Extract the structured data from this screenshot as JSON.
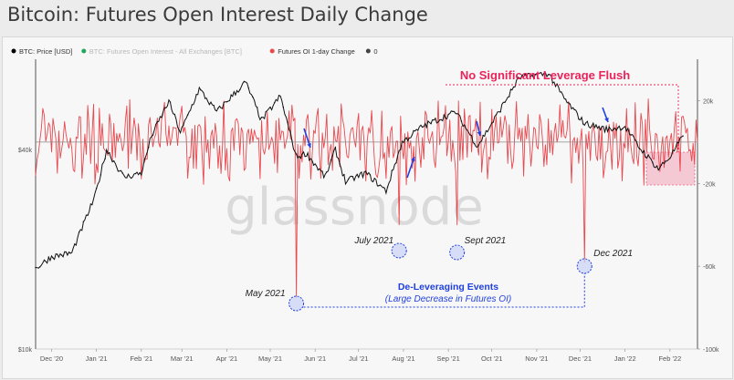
{
  "title": "Bitcoin: Futures Open Interest Daily Change",
  "watermark": "glassnode",
  "legend": [
    {
      "label": "BTC: Price [USD]",
      "color": "#000000"
    },
    {
      "label": "BTC: Futures Open Interest - All Exchanges [BTC]",
      "color": "#26a65b",
      "muted": true
    },
    {
      "label": "Futures OI 1-day Change",
      "color": "#e8484e"
    },
    {
      "label": "0",
      "color": "#444444"
    }
  ],
  "colors": {
    "price": "#111111",
    "oi_change": "#e8484e",
    "annotation_red": "#e8245a",
    "annotation_blue": "#1f3fe0",
    "zero_line": "#8a8a8a"
  },
  "annotations": {
    "no_flush": "No Significant Leverage Flush",
    "delev_title": "De-Leveraging Events",
    "delev_sub": "(Large Decrease in Futures OI)",
    "may": "May 2021",
    "july": "July 2021",
    "sept": "Sept 2021",
    "dec": "Dec 2021"
  },
  "chart_data": {
    "type": "line",
    "x_ticks": [
      "Dec '20",
      "Jan '21",
      "Feb '21",
      "Mar '21",
      "Apr '21",
      "May '21",
      "Jun '21",
      "Jul '21",
      "Aug '21",
      "Sep '21",
      "Oct '21",
      "Nov '21",
      "Dec '21",
      "Jan '22",
      "Feb '22"
    ],
    "y_left_ticks": [
      "$40k",
      "$10k"
    ],
    "y_right_ticks": [
      "20k",
      "-20k",
      "-60k",
      "-100k"
    ],
    "y_left": {
      "scale": "log",
      "range": [
        10000,
        75000
      ]
    },
    "y_right": {
      "range": [
        -100000,
        40000
      ]
    },
    "series": [
      {
        "name": "BTC: Price [USD]",
        "axis": "left",
        "points": [
          [
            "2020-11-20",
            17500
          ],
          [
            "2020-12-01",
            19000
          ],
          [
            "2020-12-15",
            19500
          ],
          [
            "2020-12-31",
            28900
          ],
          [
            "2021-01-08",
            40000
          ],
          [
            "2021-01-20",
            33000
          ],
          [
            "2021-02-01",
            34000
          ],
          [
            "2021-02-08",
            44000
          ],
          [
            "2021-02-20",
            56000
          ],
          [
            "2021-02-28",
            45000
          ],
          [
            "2021-03-13",
            61000
          ],
          [
            "2021-03-25",
            52000
          ],
          [
            "2021-04-14",
            64000
          ],
          [
            "2021-04-25",
            49000
          ],
          [
            "2021-05-08",
            58000
          ],
          [
            "2021-05-19",
            38000
          ],
          [
            "2021-05-26",
            39000
          ],
          [
            "2021-06-08",
            33000
          ],
          [
            "2021-06-15",
            40000
          ],
          [
            "2021-06-22",
            32000
          ],
          [
            "2021-07-06",
            34000
          ],
          [
            "2021-07-20",
            30000
          ],
          [
            "2021-07-31",
            42000
          ],
          [
            "2021-08-14",
            47000
          ],
          [
            "2021-09-06",
            52000
          ],
          [
            "2021-09-21",
            41000
          ],
          [
            "2021-10-01",
            48000
          ],
          [
            "2021-10-20",
            66000
          ],
          [
            "2021-11-09",
            68000
          ],
          [
            "2021-11-20",
            57000
          ],
          [
            "2021-12-04",
            48000
          ],
          [
            "2021-12-20",
            46000
          ],
          [
            "2022-01-01",
            47000
          ],
          [
            "2022-01-10",
            41000
          ],
          [
            "2022-01-24",
            35000
          ],
          [
            "2022-02-01",
            38000
          ],
          [
            "2022-02-10",
            44000
          ]
        ]
      },
      {
        "name": "Futures OI 1-day Change",
        "axis": "right",
        "spikes": [
          [
            "2021-05-19",
            -75000
          ],
          [
            "2021-07-29",
            -40000
          ],
          [
            "2021-09-07",
            -40000
          ],
          [
            "2021-12-04",
            -58000
          ]
        ]
      }
    ],
    "x_range": [
      "2020-11-20",
      "2022-02-20"
    ]
  }
}
